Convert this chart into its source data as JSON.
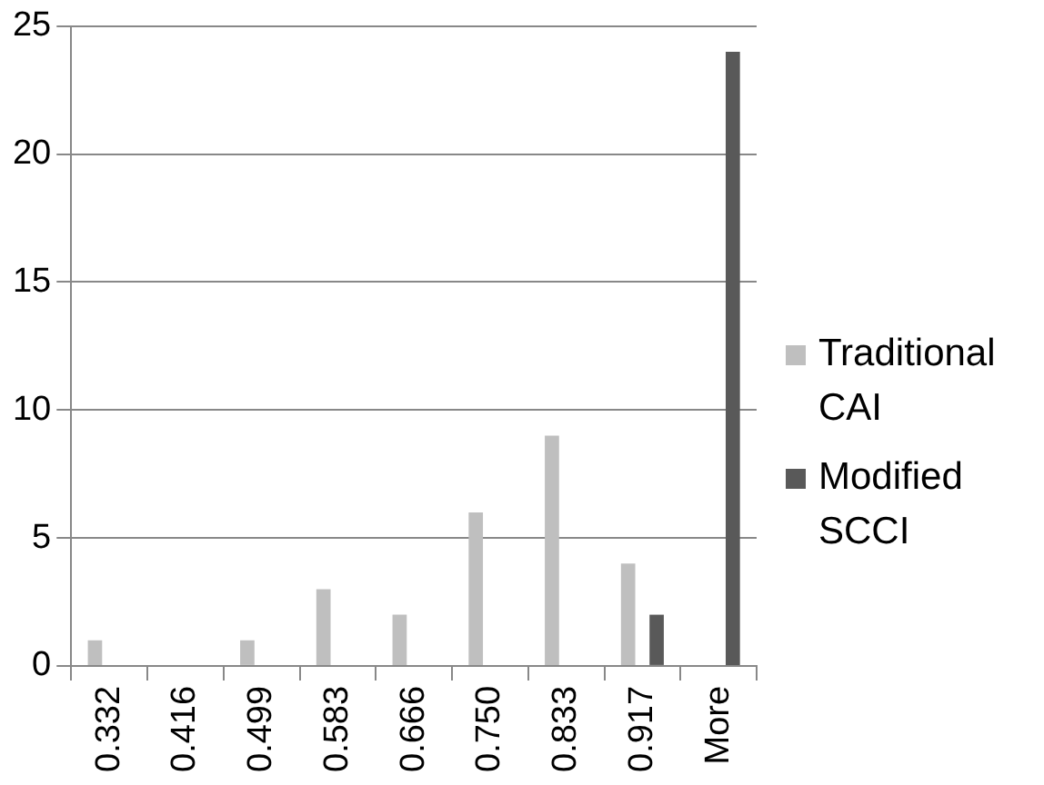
{
  "chart_data": {
    "type": "bar",
    "categories": [
      "0.332",
      "0.416",
      "0.499",
      "0.583",
      "0.666",
      "0.750",
      "0.833",
      "0.917",
      "More"
    ],
    "series": [
      {
        "name": "Traditional CAI",
        "color": "#bfbfbf",
        "values": [
          1,
          0,
          1,
          3,
          2,
          6,
          9,
          4,
          0
        ]
      },
      {
        "name": "Modified SCCI",
        "color": "#595959",
        "values": [
          0,
          0,
          0,
          0,
          0,
          0,
          0,
          2,
          24
        ]
      }
    ],
    "ylim": [
      0,
      25
    ],
    "yticks": [
      0,
      5,
      10,
      15,
      20,
      25
    ],
    "grid": "y",
    "legend": "right"
  }
}
